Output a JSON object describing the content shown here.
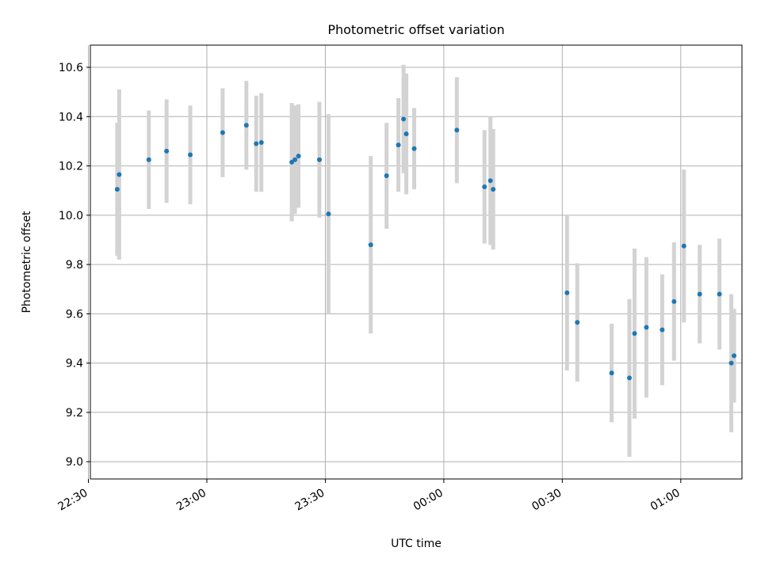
{
  "chart_data": {
    "type": "scatter",
    "title": "Photometric offset variation",
    "xlabel": "UTC time",
    "ylabel": "Photometric offset",
    "x_unit": "minutes since 22:00",
    "xlim": [
      30.5,
      195.5
    ],
    "ylim": [
      8.93,
      10.69
    ],
    "grid": true,
    "x_ticks": [
      {
        "value": 30,
        "label": "22:30"
      },
      {
        "value": 60,
        "label": "23:00"
      },
      {
        "value": 90,
        "label": "23:30"
      },
      {
        "value": 120,
        "label": "00:00"
      },
      {
        "value": 150,
        "label": "00:30"
      },
      {
        "value": 180,
        "label": "01:00"
      }
    ],
    "y_ticks": [
      {
        "value": 9.0,
        "label": "9.0"
      },
      {
        "value": 9.2,
        "label": "9.2"
      },
      {
        "value": 9.4,
        "label": "9.4"
      },
      {
        "value": 9.6,
        "label": "9.6"
      },
      {
        "value": 9.8,
        "label": "9.8"
      },
      {
        "value": 10.0,
        "label": "10.0"
      },
      {
        "value": 10.2,
        "label": "10.2"
      },
      {
        "value": 10.4,
        "label": "10.4"
      },
      {
        "value": 10.6,
        "label": "10.6"
      }
    ],
    "marker_color": "#1f77b4",
    "errorbar_color": "#d3d3d3",
    "points": [
      {
        "x": 37.3,
        "y": 10.105,
        "err": 0.27
      },
      {
        "x": 37.8,
        "y": 10.165,
        "err": 0.345
      },
      {
        "x": 45.3,
        "y": 10.225,
        "err": 0.2
      },
      {
        "x": 49.8,
        "y": 10.26,
        "err": 0.21
      },
      {
        "x": 55.8,
        "y": 10.245,
        "err": 0.2
      },
      {
        "x": 64.0,
        "y": 10.335,
        "err": 0.18
      },
      {
        "x": 70.0,
        "y": 10.365,
        "err": 0.18
      },
      {
        "x": 72.5,
        "y": 10.29,
        "err": 0.195
      },
      {
        "x": 73.8,
        "y": 10.295,
        "err": 0.2
      },
      {
        "x": 81.5,
        "y": 10.215,
        "err": 0.24
      },
      {
        "x": 82.3,
        "y": 10.225,
        "err": 0.22
      },
      {
        "x": 83.2,
        "y": 10.24,
        "err": 0.21
      },
      {
        "x": 88.5,
        "y": 10.225,
        "err": 0.235
      },
      {
        "x": 90.8,
        "y": 10.005,
        "err": 0.405
      },
      {
        "x": 101.5,
        "y": 9.88,
        "err": 0.36
      },
      {
        "x": 105.5,
        "y": 10.16,
        "err": 0.215
      },
      {
        "x": 108.5,
        "y": 10.285,
        "err": 0.19
      },
      {
        "x": 109.8,
        "y": 10.39,
        "err": 0.22
      },
      {
        "x": 110.5,
        "y": 10.33,
        "err": 0.245
      },
      {
        "x": 112.5,
        "y": 10.27,
        "err": 0.165
      },
      {
        "x": 123.3,
        "y": 10.345,
        "err": 0.215
      },
      {
        "x": 130.3,
        "y": 10.115,
        "err": 0.23
      },
      {
        "x": 131.8,
        "y": 10.14,
        "err": 0.26
      },
      {
        "x": 132.5,
        "y": 10.105,
        "err": 0.245
      },
      {
        "x": 151.2,
        "y": 9.685,
        "err": 0.315
      },
      {
        "x": 153.8,
        "y": 9.565,
        "err": 0.24
      },
      {
        "x": 162.5,
        "y": 9.36,
        "err": 0.2
      },
      {
        "x": 167.0,
        "y": 9.34,
        "err": 0.32
      },
      {
        "x": 168.3,
        "y": 9.52,
        "err": 0.345
      },
      {
        "x": 171.3,
        "y": 9.545,
        "err": 0.285
      },
      {
        "x": 175.3,
        "y": 9.535,
        "err": 0.225
      },
      {
        "x": 178.3,
        "y": 9.65,
        "err": 0.24
      },
      {
        "x": 180.8,
        "y": 9.875,
        "err": 0.31
      },
      {
        "x": 184.8,
        "y": 9.68,
        "err": 0.2
      },
      {
        "x": 189.8,
        "y": 9.68,
        "err": 0.225
      },
      {
        "x": 192.8,
        "y": 9.4,
        "err": 0.28
      },
      {
        "x": 193.5,
        "y": 9.43,
        "err": 0.19
      }
    ]
  }
}
